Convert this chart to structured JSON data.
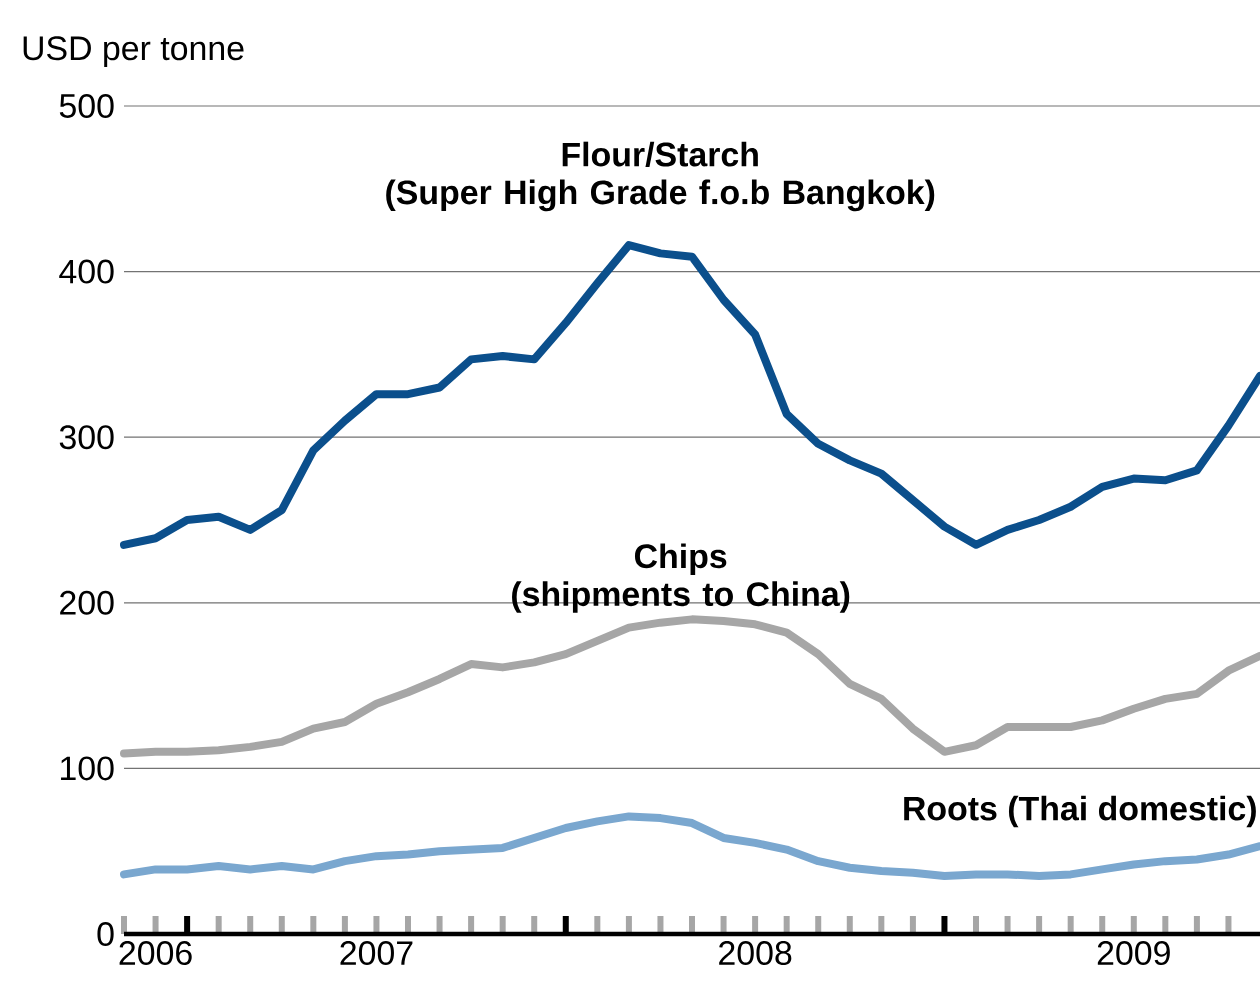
{
  "chart_data": {
    "type": "line",
    "ylabel": "USD per tonne",
    "x": [
      "2006-11",
      "2006-12",
      "2007-01",
      "2007-02",
      "2007-03",
      "2007-04",
      "2007-05",
      "2007-06",
      "2007-07",
      "2007-08",
      "2007-09",
      "2007-10",
      "2007-11",
      "2007-12",
      "2008-01",
      "2008-02",
      "2008-03",
      "2008-04",
      "2008-05",
      "2008-06",
      "2008-07",
      "2008-08",
      "2008-09",
      "2008-10",
      "2008-11",
      "2008-12",
      "2009-01",
      "2009-02",
      "2009-03",
      "2009-04",
      "2009-05",
      "2009-06",
      "2009-07",
      "2009-08",
      "2009-09",
      "2009-10",
      "2009-11"
    ],
    "series": [
      {
        "name": "Flour/Starch (Super High Grade f.o.b Bangkok)",
        "color": "#0b4f8c",
        "values": [
          235,
          239,
          250,
          252,
          244,
          256,
          292,
          310,
          326,
          326,
          330,
          347,
          349,
          347,
          369,
          393,
          416,
          411,
          409,
          383,
          362,
          314,
          296,
          286,
          278,
          262,
          246,
          235,
          244,
          250,
          258,
          270,
          275,
          274,
          280,
          307,
          337
        ]
      },
      {
        "name": "Chips (shipments to China)",
        "color": "#a6a6a6",
        "values": [
          109,
          110,
          110,
          111,
          113,
          116,
          124,
          128,
          139,
          146,
          154,
          163,
          161,
          164,
          169,
          177,
          185,
          188,
          190,
          189,
          187,
          182,
          169,
          151,
          142,
          124,
          110,
          114,
          125,
          125,
          125,
          129,
          136,
          142,
          145,
          159,
          168
        ]
      },
      {
        "name": "Roots (Thai domestic)",
        "color": "#7aa7cf",
        "values": [
          36,
          39,
          39,
          41,
          39,
          41,
          39,
          44,
          47,
          48,
          50,
          51,
          52,
          58,
          64,
          68,
          71,
          70,
          67,
          58,
          55,
          51,
          44,
          40,
          38,
          37,
          35,
          36,
          36,
          35,
          36,
          39,
          42,
          44,
          45,
          48,
          53
        ]
      }
    ],
    "xlim": [
      "2006-11",
      "2009-11"
    ],
    "ylim": [
      0,
      500
    ],
    "yticks": [
      0,
      100,
      200,
      300,
      400,
      500
    ],
    "xticks": [
      {
        "value": "2006-11",
        "label": null
      },
      {
        "value": "2006-12",
        "label": "2006"
      },
      {
        "value": "2007-01",
        "label": null
      },
      {
        "value": "2007-02",
        "label": null
      },
      {
        "value": "2007-03",
        "label": null
      },
      {
        "value": "2007-04",
        "label": null
      },
      {
        "value": "2007-05",
        "label": null
      },
      {
        "value": "2007-06",
        "label": null
      },
      {
        "value": "2007-07",
        "label": "2007"
      },
      {
        "value": "2007-08",
        "label": null
      },
      {
        "value": "2007-09",
        "label": null
      },
      {
        "value": "2007-10",
        "label": null
      },
      {
        "value": "2007-11",
        "label": null
      },
      {
        "value": "2007-12",
        "label": null
      },
      {
        "value": "2008-01",
        "label": null
      },
      {
        "value": "2008-02",
        "label": null
      },
      {
        "value": "2008-03",
        "label": null
      },
      {
        "value": "2008-04",
        "label": null
      },
      {
        "value": "2008-05",
        "label": null
      },
      {
        "value": "2008-06",
        "label": null
      },
      {
        "value": "2008-07",
        "label": "2008"
      },
      {
        "value": "2008-08",
        "label": null
      },
      {
        "value": "2008-09",
        "label": null
      },
      {
        "value": "2008-10",
        "label": null
      },
      {
        "value": "2008-11",
        "label": null
      },
      {
        "value": "2008-12",
        "label": null
      },
      {
        "value": "2009-01",
        "label": null
      },
      {
        "value": "2009-02",
        "label": null
      },
      {
        "value": "2009-03",
        "label": null
      },
      {
        "value": "2009-04",
        "label": null
      },
      {
        "value": "2009-05",
        "label": null
      },
      {
        "value": "2009-06",
        "label": null
      },
      {
        "value": "2009-07",
        "label": "2009"
      },
      {
        "value": "2009-08",
        "label": null
      },
      {
        "value": "2009-09",
        "label": null
      },
      {
        "value": "2009-10",
        "label": null
      }
    ],
    "grid": "y"
  }
}
